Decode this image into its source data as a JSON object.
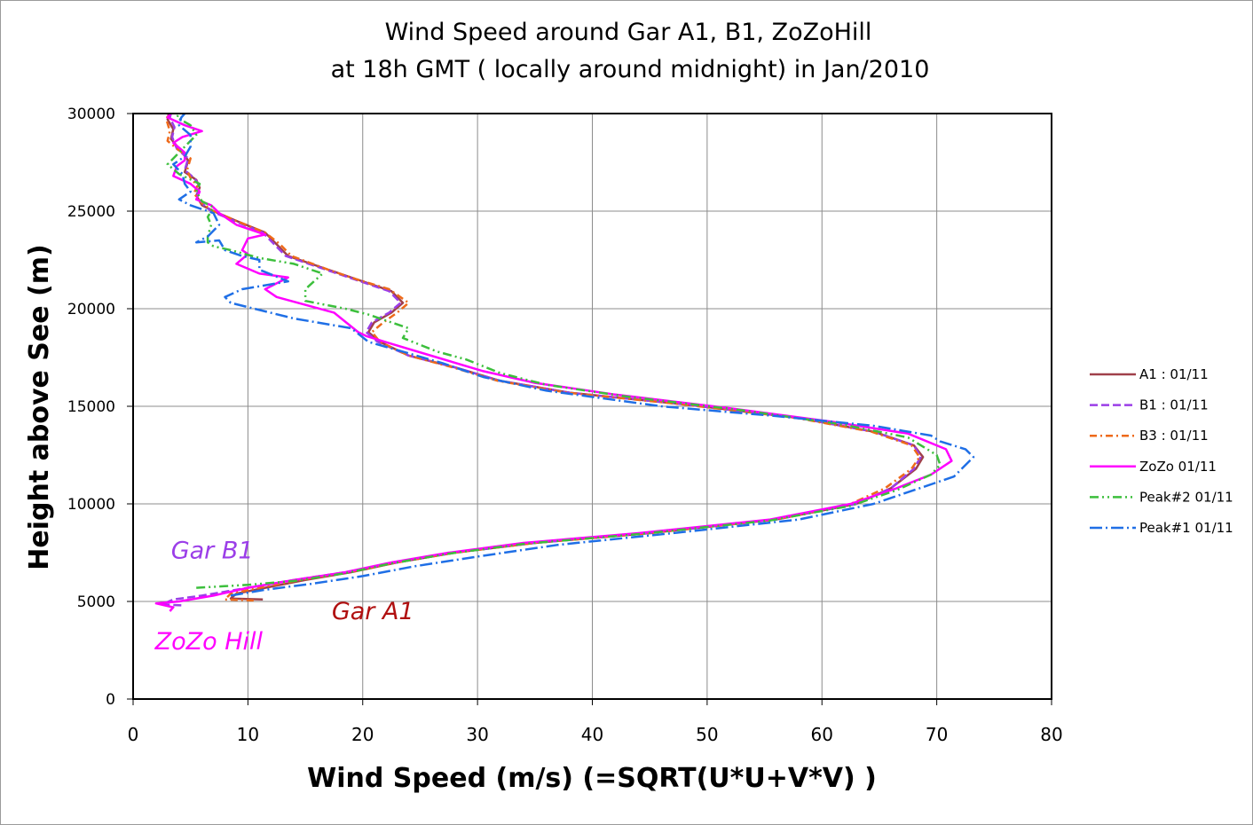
{
  "chart_data": {
    "type": "line",
    "title": [
      "Wind Speed around Gar A1, B1, ZoZoHill",
      "at 18h GMT ( locally around midnight) in Jan/2010"
    ],
    "xlabel": "Wind Speed (m/s)  (=SQRT(U*U+V*V) )",
    "ylabel": "Height above See (m)",
    "xlim": [
      0,
      80
    ],
    "ylim": [
      0,
      30000
    ],
    "xticks": [
      "0",
      "10",
      "20",
      "30",
      "40",
      "50",
      "60",
      "70",
      "80"
    ],
    "yticks": [
      "0",
      "5000",
      "10000",
      "15000",
      "20000",
      "25000",
      "30000"
    ],
    "grid": true,
    "legend_position": "right",
    "series": [
      {
        "name": "A1 : 01/11",
        "color": "#a0404a",
        "dash": "solid",
        "points": [
          [
            11.3,
            5100
          ],
          [
            8.5,
            5150
          ],
          [
            9.0,
            5400
          ],
          [
            11.5,
            5700
          ],
          [
            15.0,
            6100
          ],
          [
            19.0,
            6500
          ],
          [
            23.0,
            7000
          ],
          [
            28.0,
            7500
          ],
          [
            35.0,
            8000
          ],
          [
            45.0,
            8500
          ],
          [
            56.0,
            9200
          ],
          [
            63.0,
            10000
          ],
          [
            66.0,
            10800
          ],
          [
            68.2,
            11800
          ],
          [
            68.8,
            12400
          ],
          [
            68.0,
            13000
          ],
          [
            64.5,
            13700
          ],
          [
            58.0,
            14400
          ],
          [
            48.0,
            15100
          ],
          [
            38.0,
            15700
          ],
          [
            32.0,
            16300
          ],
          [
            28.0,
            17000
          ],
          [
            24.0,
            17600
          ],
          [
            21.5,
            18300
          ],
          [
            20.5,
            18800
          ],
          [
            21.0,
            19300
          ],
          [
            22.5,
            19800
          ],
          [
            23.5,
            20300
          ],
          [
            22.5,
            20900
          ],
          [
            19.5,
            21500
          ],
          [
            17.0,
            22000
          ],
          [
            13.5,
            22700
          ],
          [
            12.5,
            23300
          ],
          [
            11.5,
            23900
          ],
          [
            9.0,
            24500
          ],
          [
            7.0,
            25000
          ],
          [
            6.0,
            25300
          ],
          [
            5.5,
            25800
          ],
          [
            5.8,
            26200
          ],
          [
            5.5,
            26600
          ],
          [
            4.5,
            27000
          ],
          [
            4.8,
            27600
          ],
          [
            4.0,
            28200
          ],
          [
            3.3,
            28700
          ],
          [
            3.5,
            29200
          ],
          [
            3.0,
            29700
          ],
          [
            3.1,
            30000
          ]
        ]
      },
      {
        "name": "B1 : 01/11",
        "color": "#9b3ee8",
        "dash": "9,4",
        "points": [
          [
            4.2,
            4800
          ],
          [
            2.5,
            4850
          ],
          [
            3.5,
            5100
          ],
          [
            6.0,
            5300
          ],
          [
            10.0,
            5700
          ],
          [
            14.0,
            6100
          ],
          [
            18.5,
            6500
          ],
          [
            23.0,
            7000
          ],
          [
            28.0,
            7500
          ],
          [
            35.0,
            8000
          ],
          [
            45.0,
            8500
          ],
          [
            56.0,
            9200
          ],
          [
            63.0,
            10000
          ],
          [
            66.0,
            10800
          ],
          [
            68.0,
            11800
          ],
          [
            68.6,
            12400
          ],
          [
            68.0,
            13000
          ],
          [
            64.5,
            13700
          ],
          [
            58.0,
            14400
          ],
          [
            48.0,
            15100
          ],
          [
            38.0,
            15700
          ],
          [
            32.0,
            16300
          ],
          [
            28.0,
            17000
          ],
          [
            24.0,
            17600
          ],
          [
            21.3,
            18300
          ],
          [
            20.3,
            18800
          ],
          [
            20.8,
            19300
          ],
          [
            22.3,
            19800
          ],
          [
            23.3,
            20300
          ],
          [
            22.3,
            20900
          ],
          [
            19.3,
            21500
          ],
          [
            16.8,
            22000
          ],
          [
            13.3,
            22700
          ],
          [
            12.3,
            23300
          ],
          [
            11.3,
            23900
          ],
          [
            8.8,
            24500
          ],
          [
            6.8,
            25000
          ],
          [
            6.0,
            25400
          ],
          [
            5.6,
            25900
          ],
          [
            5.8,
            26300
          ],
          [
            5.3,
            26700
          ],
          [
            4.5,
            27100
          ],
          [
            4.8,
            27700
          ],
          [
            3.8,
            28200
          ],
          [
            3.4,
            28800
          ],
          [
            3.6,
            29300
          ],
          [
            3.2,
            29800
          ],
          [
            3.3,
            30000
          ]
        ]
      },
      {
        "name": "B3 : 01/11",
        "color": "#ee6a1a",
        "dash": "8,4,2,4",
        "points": [
          [
            10.5,
            5050
          ],
          [
            8.0,
            5100
          ],
          [
            8.5,
            5400
          ],
          [
            11.0,
            5700
          ],
          [
            14.5,
            6100
          ],
          [
            18.8,
            6500
          ],
          [
            23.0,
            7000
          ],
          [
            28.0,
            7500
          ],
          [
            35.0,
            8000
          ],
          [
            45.0,
            8500
          ],
          [
            56.0,
            9200
          ],
          [
            62.5,
            10000
          ],
          [
            65.5,
            10800
          ],
          [
            67.8,
            11800
          ],
          [
            68.5,
            12400
          ],
          [
            67.8,
            13000
          ],
          [
            64.3,
            13700
          ],
          [
            57.8,
            14400
          ],
          [
            47.8,
            15100
          ],
          [
            37.8,
            15700
          ],
          [
            31.8,
            16300
          ],
          [
            27.8,
            17000
          ],
          [
            24.0,
            17600
          ],
          [
            21.5,
            18300
          ],
          [
            20.8,
            18800
          ],
          [
            21.8,
            19300
          ],
          [
            23.0,
            19800
          ],
          [
            24.0,
            20300
          ],
          [
            22.3,
            21000
          ],
          [
            19.5,
            21500
          ],
          [
            17.0,
            22000
          ],
          [
            13.8,
            22700
          ],
          [
            12.8,
            23300
          ],
          [
            11.5,
            23900
          ],
          [
            9.0,
            24500
          ],
          [
            7.0,
            25000
          ],
          [
            6.0,
            25400
          ],
          [
            5.3,
            25900
          ],
          [
            5.6,
            26300
          ],
          [
            5.0,
            26700
          ],
          [
            4.7,
            27100
          ],
          [
            5.0,
            27700
          ],
          [
            3.8,
            28200
          ],
          [
            3.0,
            28600
          ],
          [
            3.2,
            29100
          ],
          [
            2.9,
            29700
          ],
          [
            3.1,
            30000
          ]
        ]
      },
      {
        "name": "ZoZo 01/11",
        "color": "#ff00ff",
        "dash": "solid",
        "points": [
          [
            3.2,
            4500
          ],
          [
            3.5,
            4700
          ],
          [
            2.0,
            4900
          ],
          [
            4.0,
            5000
          ],
          [
            7.0,
            5300
          ],
          [
            10.0,
            5700
          ],
          [
            14.0,
            6100
          ],
          [
            18.5,
            6500
          ],
          [
            22.5,
            7000
          ],
          [
            27.5,
            7500
          ],
          [
            34.0,
            8000
          ],
          [
            44.0,
            8500
          ],
          [
            55.5,
            9200
          ],
          [
            62.5,
            10000
          ],
          [
            66.5,
            10800
          ],
          [
            69.5,
            11500
          ],
          [
            71.3,
            12200
          ],
          [
            70.8,
            12800
          ],
          [
            67.5,
            13600
          ],
          [
            61.0,
            14200
          ],
          [
            52.0,
            14900
          ],
          [
            42.0,
            15600
          ],
          [
            35.0,
            16200
          ],
          [
            30.5,
            16800
          ],
          [
            26.5,
            17500
          ],
          [
            22.5,
            18200
          ],
          [
            20.3,
            18600
          ],
          [
            19.6,
            18800
          ],
          [
            17.5,
            19800
          ],
          [
            12.5,
            20600
          ],
          [
            11.5,
            21000
          ],
          [
            13.5,
            21600
          ],
          [
            11.0,
            21800
          ],
          [
            9.0,
            22300
          ],
          [
            10.0,
            22800
          ],
          [
            9.5,
            23000
          ],
          [
            10.0,
            23600
          ],
          [
            11.5,
            23800
          ],
          [
            9.0,
            24300
          ],
          [
            7.5,
            24900
          ],
          [
            6.8,
            25300
          ],
          [
            5.5,
            25600
          ],
          [
            5.8,
            26000
          ],
          [
            5.0,
            26400
          ],
          [
            3.5,
            26800
          ],
          [
            3.8,
            27300
          ],
          [
            4.5,
            27600
          ],
          [
            4.5,
            28000
          ],
          [
            3.5,
            28500
          ],
          [
            4.3,
            28800
          ],
          [
            6.0,
            29100
          ],
          [
            4.5,
            29400
          ],
          [
            3.0,
            29800
          ],
          [
            3.3,
            30000
          ]
        ]
      },
      {
        "name": "Peak#2 01/11",
        "color": "#3cbf3c",
        "dash": "10,4,2,4,2,4",
        "points": [
          [
            5.5,
            5700
          ],
          [
            7.0,
            5750
          ],
          [
            10.0,
            5850
          ],
          [
            14.0,
            6050
          ],
          [
            18.5,
            6450
          ],
          [
            22.5,
            6950
          ],
          [
            27.5,
            7450
          ],
          [
            34.0,
            7950
          ],
          [
            44.0,
            8450
          ],
          [
            55.5,
            9150
          ],
          [
            62.5,
            9900
          ],
          [
            66.5,
            10700
          ],
          [
            69.5,
            11500
          ],
          [
            70.3,
            12000
          ],
          [
            70.0,
            12500
          ],
          [
            67.5,
            13400
          ],
          [
            61.5,
            14100
          ],
          [
            53.0,
            14800
          ],
          [
            43.0,
            15500
          ],
          [
            36.0,
            16100
          ],
          [
            32.0,
            16700
          ],
          [
            29.0,
            17400
          ],
          [
            26.5,
            17800
          ],
          [
            23.5,
            18500
          ],
          [
            24.0,
            19000
          ],
          [
            20.5,
            19700
          ],
          [
            18.5,
            20000
          ],
          [
            15.0,
            20400
          ],
          [
            15.0,
            21000
          ],
          [
            16.5,
            21800
          ],
          [
            14.0,
            22300
          ],
          [
            11.0,
            22600
          ],
          [
            8.5,
            23000
          ],
          [
            7.0,
            23200
          ],
          [
            6.5,
            23400
          ],
          [
            6.5,
            23700
          ],
          [
            6.8,
            24300
          ],
          [
            6.5,
            24700
          ],
          [
            7.0,
            25200
          ],
          [
            6.0,
            25500
          ],
          [
            5.5,
            26000
          ],
          [
            5.8,
            26400
          ],
          [
            4.0,
            26900
          ],
          [
            3.0,
            27400
          ],
          [
            3.5,
            27700
          ],
          [
            4.5,
            28300
          ],
          [
            5.5,
            28900
          ],
          [
            5.0,
            29400
          ],
          [
            3.8,
            29800
          ],
          [
            4.0,
            30000
          ]
        ]
      },
      {
        "name": "Peak#1 01/11",
        "color": "#1f6fe6",
        "dash": "14,4,2,4",
        "points": [
          [
            8.5,
            5300
          ],
          [
            11.5,
            5600
          ],
          [
            15.5,
            5900
          ],
          [
            20.0,
            6300
          ],
          [
            24.5,
            6800
          ],
          [
            30.0,
            7300
          ],
          [
            37.0,
            7900
          ],
          [
            47.0,
            8500
          ],
          [
            58.0,
            9200
          ],
          [
            64.5,
            10000
          ],
          [
            68.5,
            10800
          ],
          [
            71.5,
            11400
          ],
          [
            73.2,
            12400
          ],
          [
            72.5,
            12800
          ],
          [
            70.3,
            13200
          ],
          [
            69.5,
            13500
          ],
          [
            64.5,
            14000
          ],
          [
            56.0,
            14500
          ],
          [
            46.0,
            15000
          ],
          [
            36.0,
            15800
          ],
          [
            30.5,
            16500
          ],
          [
            27.0,
            17200
          ],
          [
            23.5,
            17800
          ],
          [
            20.5,
            18300
          ],
          [
            19.0,
            19000
          ],
          [
            14.0,
            19500
          ],
          [
            8.5,
            20300
          ],
          [
            8.0,
            20600
          ],
          [
            9.5,
            21000
          ],
          [
            13.5,
            21400
          ],
          [
            11.0,
            22000
          ],
          [
            11.0,
            22500
          ],
          [
            9.5,
            22700
          ],
          [
            8.0,
            23000
          ],
          [
            7.5,
            23500
          ],
          [
            5.5,
            23400
          ],
          [
            6.5,
            23700
          ],
          [
            7.5,
            24300
          ],
          [
            7.0,
            24900
          ],
          [
            5.0,
            25300
          ],
          [
            4.0,
            25600
          ],
          [
            5.0,
            26000
          ],
          [
            4.5,
            26400
          ],
          [
            4.3,
            26900
          ],
          [
            3.5,
            27400
          ],
          [
            4.5,
            27800
          ],
          [
            5.0,
            28300
          ],
          [
            5.0,
            28900
          ],
          [
            4.0,
            29400
          ],
          [
            4.2,
            29800
          ],
          [
            4.5,
            30000
          ]
        ]
      }
    ],
    "annotations": [
      {
        "text": "Gar B1",
        "color": "#9b3ee8",
        "x": 3.3,
        "y": 7200
      },
      {
        "text": "Gar A1",
        "color": "#b01010",
        "x": 17.3,
        "y": 4100
      },
      {
        "text": "ZoZo Hill",
        "color": "#ff00ff",
        "x": 1.9,
        "y": 2550
      }
    ]
  }
}
